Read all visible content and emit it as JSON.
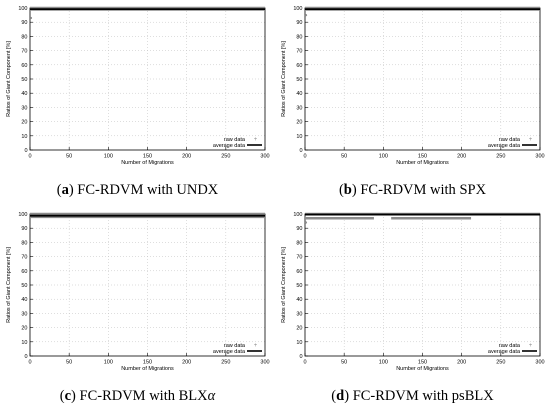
{
  "panels": [
    {
      "label": "a",
      "caption_prefix": "FC-RDVM with ",
      "caption_method": "UNDX",
      "caption_symbol": "",
      "chart_data": {
        "type": "scatter",
        "xlabel": "Number of Migrations",
        "ylabel": "Ratios of Giant Component [%]",
        "xlim": [
          0,
          300
        ],
        "ylim": [
          0,
          100
        ],
        "xticks": [
          0,
          50,
          100,
          150,
          200,
          250,
          300
        ],
        "yticks": [
          0,
          10,
          20,
          30,
          40,
          50,
          60,
          70,
          80,
          90,
          100
        ],
        "grid": true,
        "legend_position": "bottom-right",
        "series": [
          {
            "name": "raw data",
            "style": "points",
            "color": "#8c8c8c",
            "segments": [
              {
                "x": [
                  0,
                  300
                ],
                "y": 100
              },
              {
                "x": [
                  0,
                  300
                ],
                "y": 99
              }
            ],
            "outliers": [
              {
                "x": 0,
                "y": 93
              }
            ]
          },
          {
            "name": "average data",
            "style": "line",
            "color": "#000000",
            "segments": [
              {
                "x": [
                  0,
                  300
                ],
                "y": 99.2
              }
            ]
          }
        ]
      }
    },
    {
      "label": "b",
      "caption_prefix": "FC-RDVM with ",
      "caption_method": "SPX",
      "caption_symbol": "",
      "chart_data": {
        "type": "scatter",
        "xlabel": "Number of Migrations",
        "ylabel": "Ratios of Giant Component [%]",
        "xlim": [
          0,
          300
        ],
        "ylim": [
          0,
          100
        ],
        "xticks": [
          0,
          50,
          100,
          150,
          200,
          250,
          300
        ],
        "yticks": [
          0,
          10,
          20,
          30,
          40,
          50,
          60,
          70,
          80,
          90,
          100
        ],
        "grid": true,
        "legend_position": "bottom-right",
        "series": [
          {
            "name": "raw data",
            "style": "points",
            "color": "#8c8c8c",
            "segments": [
              {
                "x": [
                  0,
                  300
                ],
                "y": 100
              },
              {
                "x": [
                  0,
                  300
                ],
                "y": 99
              }
            ],
            "outliers": [
              {
                "x": 0,
                "y": 95
              }
            ]
          },
          {
            "name": "average data",
            "style": "line",
            "color": "#000000",
            "segments": [
              {
                "x": [
                  0,
                  300
                ],
                "y": 99.2
              }
            ]
          }
        ]
      }
    },
    {
      "label": "c",
      "caption_prefix": "FC-RDVM with BLX",
      "caption_method": "",
      "caption_symbol": "α",
      "chart_data": {
        "type": "scatter",
        "xlabel": "Number of Migrations",
        "ylabel": "Ratios of Giant Component [%]",
        "xlim": [
          0,
          300
        ],
        "ylim": [
          0,
          100
        ],
        "xticks": [
          0,
          50,
          100,
          150,
          200,
          250,
          300
        ],
        "yticks": [
          0,
          10,
          20,
          30,
          40,
          50,
          60,
          70,
          80,
          90,
          100
        ],
        "grid": true,
        "legend_position": "bottom-right",
        "series": [
          {
            "name": "raw data",
            "style": "points",
            "color": "#8c8c8c",
            "segments": [
              {
                "x": [
                  0,
                  300
                ],
                "y": 100
              },
              {
                "x": [
                  0,
                  300
                ],
                "y": 98
              }
            ],
            "outliers": []
          },
          {
            "name": "average data",
            "style": "line",
            "color": "#000000",
            "segments": [
              {
                "x": [
                  0,
                  300
                ],
                "y": 98.8
              }
            ]
          }
        ]
      }
    },
    {
      "label": "d",
      "caption_prefix": "FC-RDVM with ",
      "caption_method": "psBLX",
      "caption_symbol": "",
      "chart_data": {
        "type": "scatter",
        "xlabel": "Number of Migrations",
        "ylabel": "Ratios of Giant Component [%]",
        "xlim": [
          0,
          300
        ],
        "ylim": [
          0,
          100
        ],
        "xticks": [
          0,
          50,
          100,
          150,
          200,
          250,
          300
        ],
        "yticks": [
          0,
          10,
          20,
          30,
          40,
          50,
          60,
          70,
          80,
          90,
          100
        ],
        "grid": true,
        "legend_position": "bottom-right",
        "series": [
          {
            "name": "raw data",
            "style": "points",
            "color": "#8c8c8c",
            "segments": [
              {
                "x": [
                  0,
                  300
                ],
                "y": 100
              },
              {
                "x": [
                  0,
                  88
                ],
                "y": 97
              },
              {
                "x": [
                  110,
                  212
                ],
                "y": 97
              }
            ],
            "outliers": [
              {
                "x": 0,
                "y": 94
              }
            ]
          },
          {
            "name": "average data",
            "style": "line",
            "color": "#000000",
            "segments": [
              {
                "x": [
                  0,
                  300
                ],
                "y": 99.6
              }
            ]
          }
        ]
      }
    }
  ]
}
